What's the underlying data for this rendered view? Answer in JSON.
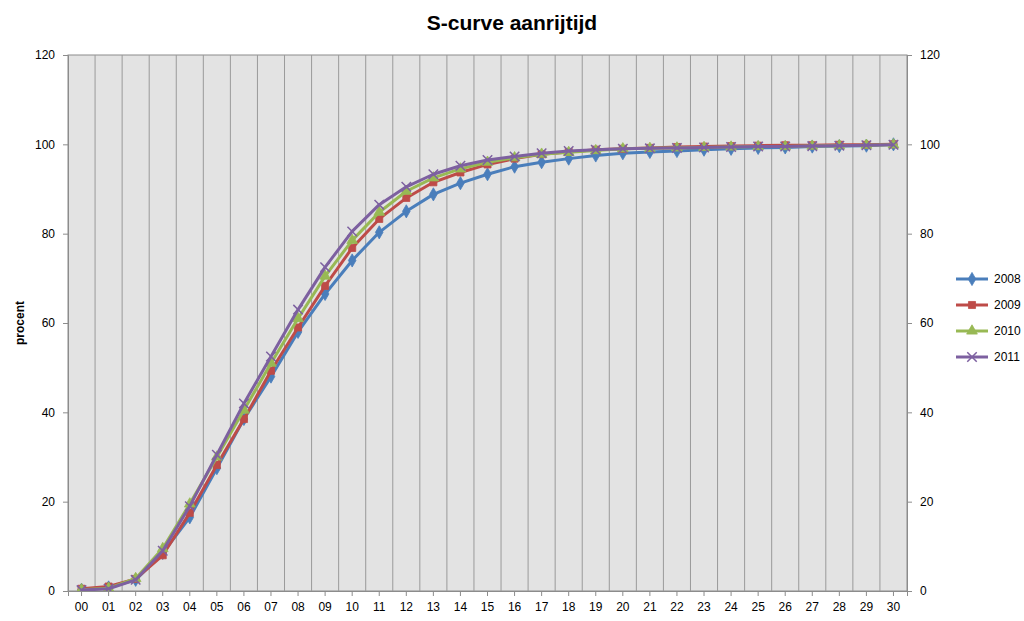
{
  "chart_data": {
    "type": "line",
    "title": "S-curve aanrijtijd",
    "y_label": "procent",
    "categories": [
      "00",
      "01",
      "02",
      "03",
      "04",
      "05",
      "06",
      "07",
      "08",
      "09",
      "10",
      "11",
      "12",
      "13",
      "14",
      "15",
      "16",
      "17",
      "18",
      "19",
      "20",
      "21",
      "22",
      "23",
      "24",
      "25",
      "26",
      "27",
      "28",
      "29",
      "30"
    ],
    "series": [
      {
        "name": "2008",
        "color": "#4a7ebb",
        "marker": "diamond",
        "values": [
          0.3,
          0.8,
          2.5,
          8.5,
          16.5,
          27.5,
          38.5,
          48,
          58,
          66.5,
          74,
          80.3,
          85,
          88.8,
          91.3,
          93.3,
          95,
          96,
          96.8,
          97.5,
          98,
          98.3,
          98.5,
          98.8,
          99,
          99.2,
          99.3,
          99.5,
          99.6,
          99.7,
          100
        ]
      },
      {
        "name": "2009",
        "color": "#be4b48",
        "marker": "square",
        "values": [
          0.5,
          1,
          2.7,
          8,
          17.5,
          28.2,
          38.5,
          49.3,
          59,
          68.3,
          76.8,
          83.3,
          88,
          91.5,
          93.7,
          95.5,
          96.8,
          97.8,
          98.3,
          98.8,
          99,
          99.2,
          99.4,
          99.5,
          99.6,
          99.7,
          99.8,
          99.8,
          99.9,
          99.9,
          100
        ]
      },
      {
        "name": "2010",
        "color": "#98b954",
        "marker": "triangle",
        "values": [
          0.3,
          0.6,
          2.8,
          9.5,
          19.5,
          30,
          40.5,
          51,
          61,
          70.5,
          78.5,
          84.8,
          89.5,
          92.5,
          94.5,
          96,
          97,
          97.8,
          98.2,
          98.6,
          99,
          99.1,
          99.2,
          99.3,
          99.4,
          99.5,
          99.5,
          99.6,
          99.7,
          99.8,
          99.9
        ]
      },
      {
        "name": "2011",
        "color": "#7d60a0",
        "marker": "x",
        "values": [
          0.2,
          0.5,
          2.5,
          9,
          19,
          30.5,
          42,
          52.5,
          63,
          72.5,
          80.5,
          86.5,
          90.5,
          93.3,
          95.2,
          96.5,
          97.3,
          98,
          98.5,
          98.8,
          99,
          99.1,
          99.2,
          99.3,
          99.4,
          99.5,
          99.5,
          99.6,
          99.7,
          99.8,
          99.9
        ]
      }
    ],
    "ylim": [
      0,
      120
    ],
    "yticks": [
      0,
      20,
      40,
      60,
      80,
      100,
      120
    ],
    "y2lim": [
      0,
      120
    ],
    "y2ticks": [
      0,
      20,
      40,
      60,
      80,
      100,
      120
    ],
    "grid": "x",
    "legend": "right"
  }
}
